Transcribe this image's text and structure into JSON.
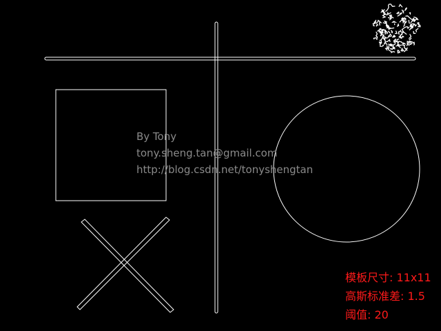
{
  "colors": {
    "background": "#000000",
    "edge": "#ffffff",
    "watermark": "#8a8a8a",
    "param_text": "#ff1a1a"
  },
  "watermark": {
    "line1": "By Tony",
    "line2": "tony.sheng.tan@gmail.com",
    "line3": "http://blog.csdn.net/tonyshengtan"
  },
  "params": {
    "template_size": "模板尺寸: 11x11",
    "gaussian_sigma": "高斯标准差: 1.5",
    "threshold": "阈值: 20"
  }
}
